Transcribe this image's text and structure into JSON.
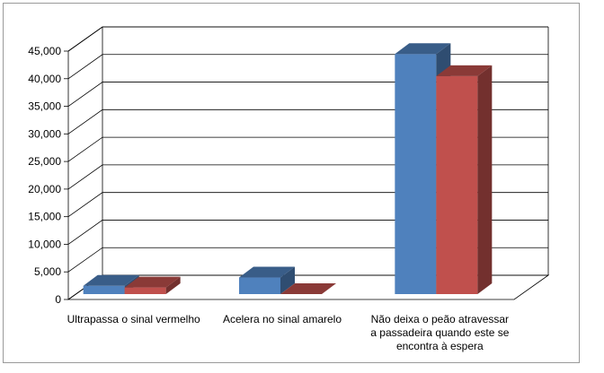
{
  "chart_data": {
    "type": "bar",
    "title": "",
    "xlabel": "",
    "ylabel": "",
    "three_d": true,
    "grid": true,
    "legend": "none",
    "ylim": [
      0,
      45000
    ],
    "yticks": [
      0,
      5000,
      10000,
      15000,
      20000,
      25000,
      30000,
      35000,
      40000,
      45000
    ],
    "ytick_labels": [
      "0",
      "5,000",
      "10,000",
      "15,000",
      "20,000",
      "25,000",
      "30,000",
      "35,000",
      "40,000",
      "45,000"
    ],
    "categories": [
      [
        "Ultrapassa o sinal vermelho"
      ],
      [
        "Acelera no sinal amarelo"
      ],
      [
        "Não deixa o peão atravessar",
        "a passadeira quando este se",
        "encontra à espera"
      ]
    ],
    "series": [
      {
        "color": "#4f81bd",
        "values": [
          1500,
          3000,
          43500
        ]
      },
      {
        "color": "#c0504d",
        "values": [
          1200,
          0,
          39500
        ]
      }
    ]
  }
}
